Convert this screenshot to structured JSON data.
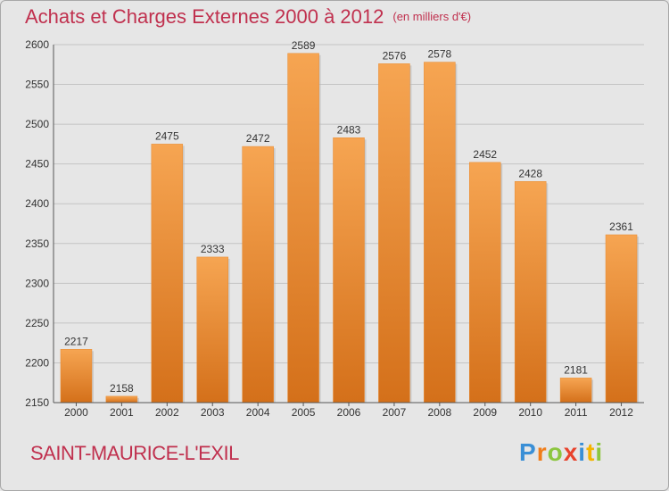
{
  "header": {
    "title": "Achats et Charges Externes 2000 à 2012",
    "unit": "(en milliers d'€)"
  },
  "footer": {
    "town": "SAINT-MAURICE-L'EXIL",
    "logo_letters": [
      {
        "char": "P",
        "color": "#3a8fd6"
      },
      {
        "char": "r",
        "color": "#f07d1a"
      },
      {
        "char": "o",
        "color": "#8cc63f"
      },
      {
        "char": "x",
        "color": "#e8432d"
      },
      {
        "char": "i",
        "color": "#3a8fd6"
      },
      {
        "char": "t",
        "color": "#f4b400"
      },
      {
        "char": "i",
        "color": "#8cc63f"
      }
    ]
  },
  "colors": {
    "bar_top": "#f6a552",
    "bar_bottom": "#d4701a",
    "grid": "#c4c4c4",
    "title": "#c0304e"
  },
  "chart_data": {
    "type": "bar",
    "title": "Achats et Charges Externes 2000 à 2012",
    "subtitle": "(en milliers d'€)",
    "xlabel": "",
    "ylabel": "",
    "categories": [
      "2000",
      "2001",
      "2002",
      "2003",
      "2004",
      "2005",
      "2006",
      "2007",
      "2008",
      "2009",
      "2010",
      "2011",
      "2012"
    ],
    "values": [
      2217,
      2158,
      2475,
      2333,
      2472,
      2589,
      2483,
      2576,
      2578,
      2452,
      2428,
      2181,
      2361
    ],
    "ylim": [
      2150,
      2600
    ],
    "yticks": [
      2150,
      2200,
      2250,
      2300,
      2350,
      2400,
      2450,
      2500,
      2550,
      2600
    ],
    "grid": true,
    "legend": "none"
  }
}
